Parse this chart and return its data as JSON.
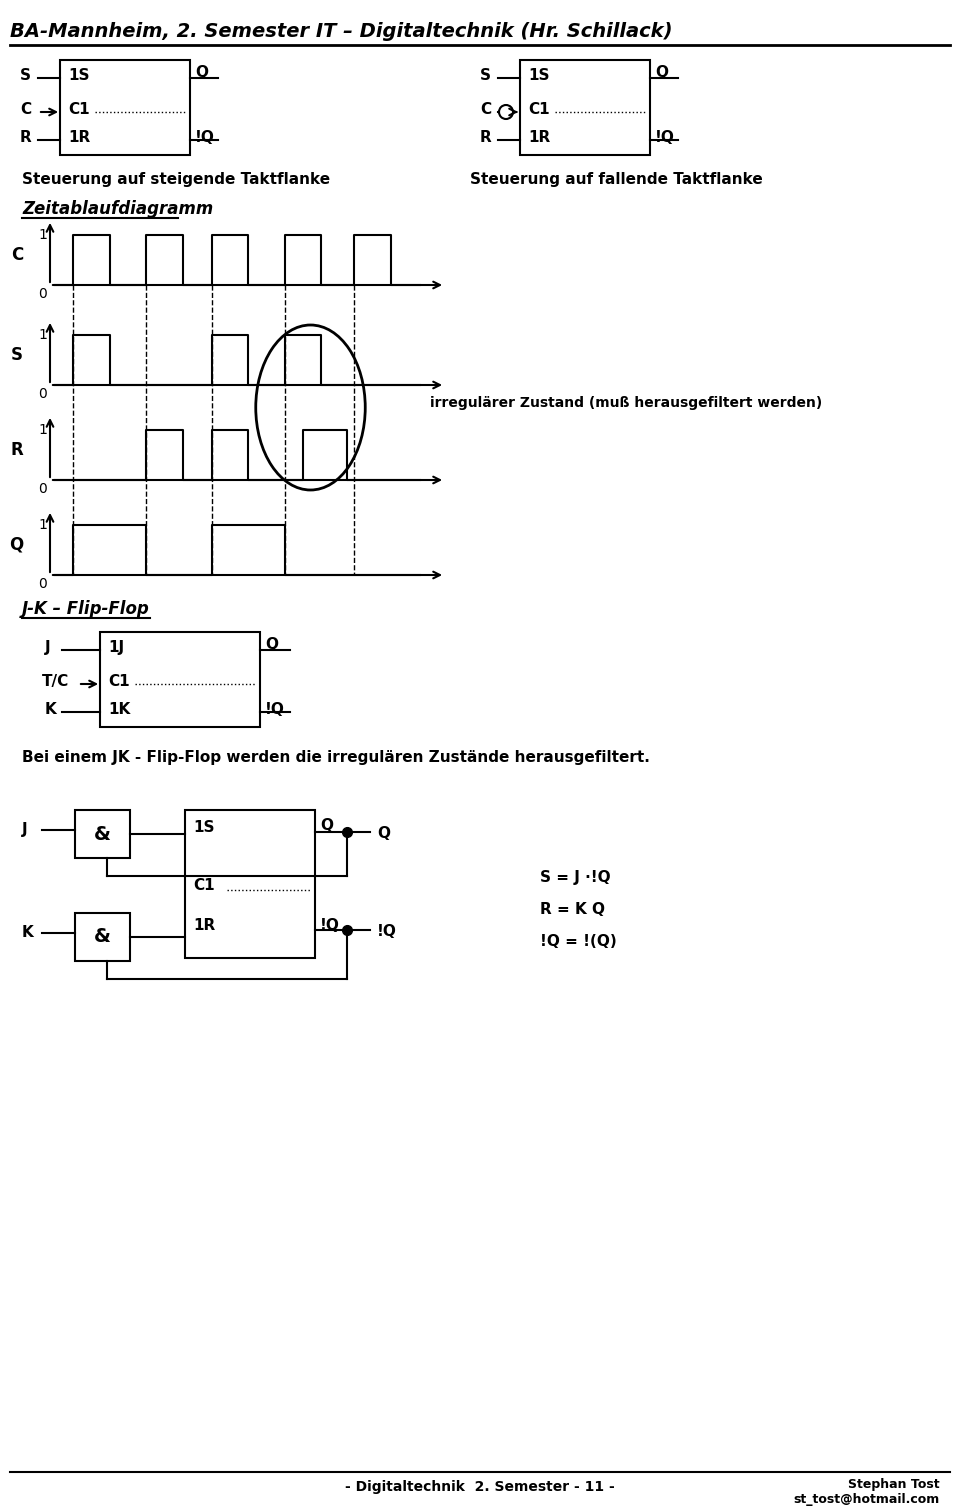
{
  "title": "BA-Mannheim, 2. Semester IT – Digitaltechnik (Hr. Schillack)",
  "subtitle_left": "Steuerung auf steigende Taktflanke",
  "subtitle_right": "Steuerung auf fallende Taktflanke",
  "zeitablauf_label": "Zeitablaufdiagramm",
  "jk_label": "J-K – Flip-Flop",
  "irregular_text": "irregulärer Zustand (muß herausgefiltert werden)",
  "jk_text": "Bei einem JK - Flip-Flop werden die irregulären Zustände herausgefiltert.",
  "sr_eq1": "S = J ·!Q",
  "sr_eq2": "R = K Q",
  "sr_eq3": "!Q = !(Q)",
  "footer_left": "- Digitaltechnik  2. Semester - 11 -",
  "footer_right": "Stephan Tost\nst_tost@hotmail.com",
  "bg_color": "#ffffff",
  "line_color": "#000000"
}
